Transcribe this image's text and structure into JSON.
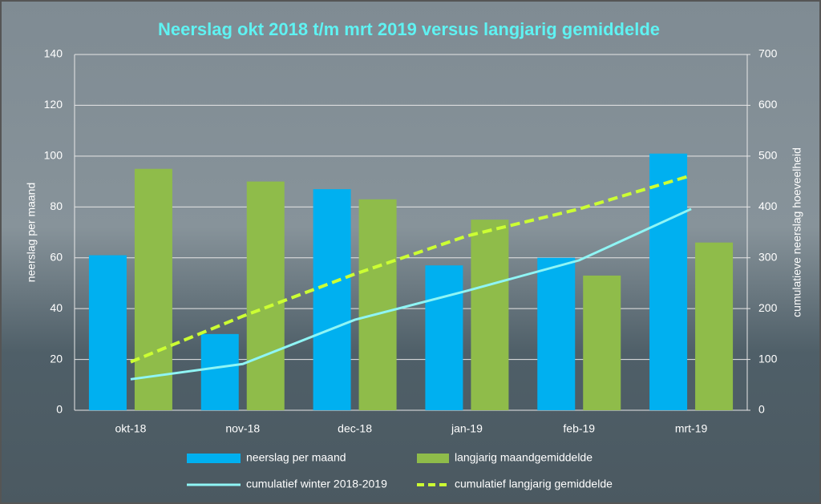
{
  "chart_data": {
    "type": "bar",
    "title": "Neerslag okt 2018 t/m mrt 2019 versus langjarig gemiddelde",
    "y_label": "neerslag per maand",
    "y2_label": "cumulatieve neerslag hoeveelheid",
    "categories": [
      "okt-18",
      "nov-18",
      "dec-18",
      "jan-19",
      "feb-19",
      "mrt-19"
    ],
    "series": [
      {
        "name": "neerslag per maand",
        "type": "bar",
        "color": "#00b0f0",
        "values": [
          61,
          30,
          87,
          57,
          60,
          101
        ]
      },
      {
        "name": "langjarig maandgemiddelde",
        "type": "bar",
        "color": "#8fbc4a",
        "values": [
          95,
          90,
          83,
          75,
          53,
          66
        ]
      },
      {
        "name": "cumulatief winter 2018-2019",
        "type": "line",
        "axis": "y2",
        "color": "#8ff5f5",
        "dashed": false,
        "values": [
          61,
          91,
          178,
          235,
          295,
          396
        ]
      },
      {
        "name": "cumulatief langjarig gemiddelde",
        "type": "line",
        "axis": "y2",
        "color": "#ccff33",
        "dashed": true,
        "values": [
          95,
          185,
          268,
          343,
          396,
          462
        ]
      }
    ],
    "ylim": [
      0,
      140
    ],
    "yticks": [
      0,
      20,
      40,
      60,
      80,
      100,
      120,
      140
    ],
    "y2lim": [
      0,
      700
    ],
    "y2ticks": [
      0,
      100,
      200,
      300,
      400,
      500,
      600,
      700
    ],
    "grid": true,
    "legend": "bottom"
  }
}
